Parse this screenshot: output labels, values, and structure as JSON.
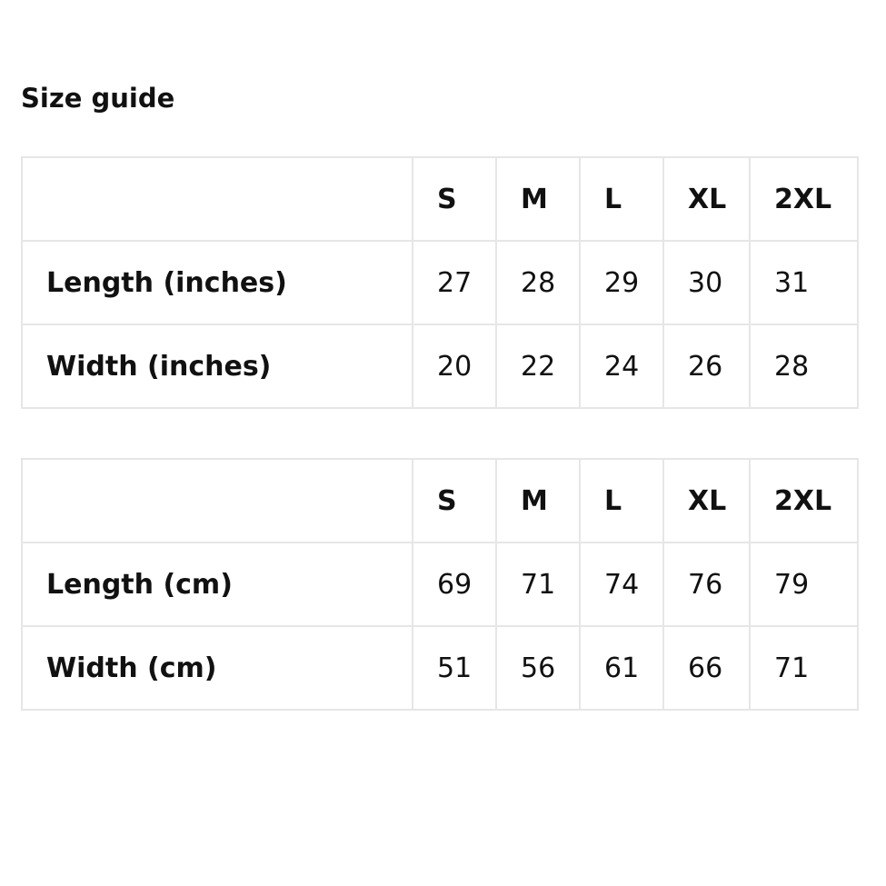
{
  "title": "Size guide",
  "tables": [
    {
      "sizes": [
        "S",
        "M",
        "L",
        "XL",
        "2XL"
      ],
      "rows": [
        {
          "label": "Length (inches)",
          "values": [
            "27",
            "28",
            "29",
            "30",
            "31"
          ]
        },
        {
          "label": "Width (inches)",
          "values": [
            "20",
            "22",
            "24",
            "26",
            "28"
          ]
        }
      ]
    },
    {
      "sizes": [
        "S",
        "M",
        "L",
        "XL",
        "2XL"
      ],
      "rows": [
        {
          "label": "Length (cm)",
          "values": [
            "69",
            "71",
            "74",
            "76",
            "79"
          ]
        },
        {
          "label": "Width (cm)",
          "values": [
            "51",
            "56",
            "61",
            "66",
            "71"
          ]
        }
      ]
    }
  ]
}
